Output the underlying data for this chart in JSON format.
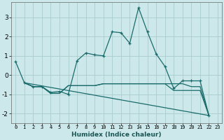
{
  "xlabel": "Humidex (Indice chaleur)",
  "background_color": "#cce8ea",
  "grid_color": "#aacccc",
  "line_color": "#1a6b6b",
  "xlim": [
    -0.5,
    23.5
  ],
  "ylim": [
    -2.5,
    3.8
  ],
  "xticks": [
    0,
    1,
    2,
    3,
    4,
    5,
    6,
    7,
    8,
    9,
    10,
    11,
    12,
    13,
    14,
    15,
    16,
    17,
    18,
    19,
    20,
    21,
    22,
    23
  ],
  "yticks": [
    -2,
    -1,
    0,
    1,
    2,
    3
  ],
  "line_main": {
    "x": [
      0,
      1,
      2,
      3,
      4,
      5,
      6,
      7,
      8,
      9,
      10,
      11,
      12,
      13,
      14,
      15,
      16,
      17,
      18,
      19,
      20,
      21,
      22
    ],
    "y": [
      0.7,
      -0.4,
      -0.6,
      -0.6,
      -0.9,
      -0.85,
      -1.0,
      0.75,
      1.15,
      1.05,
      1.0,
      2.25,
      2.2,
      1.65,
      3.5,
      2.25,
      1.1,
      0.45,
      -0.7,
      -0.3,
      -0.3,
      -0.3,
      -2.1
    ]
  },
  "line_flat1": {
    "x": [
      1,
      2,
      3,
      4,
      5,
      6,
      7,
      8,
      9,
      10,
      11,
      12,
      13,
      14,
      15,
      16,
      17,
      18,
      19,
      20,
      21,
      22
    ],
    "y": [
      -0.4,
      -0.6,
      -0.6,
      -0.95,
      -0.95,
      -0.55,
      -0.55,
      -0.55,
      -0.55,
      -0.45,
      -0.45,
      -0.45,
      -0.45,
      -0.45,
      -0.45,
      -0.45,
      -0.45,
      -0.45,
      -0.45,
      -0.6,
      -0.6,
      -2.1
    ]
  },
  "line_flat2": {
    "x": [
      1,
      2,
      3,
      4,
      5,
      6,
      7,
      8,
      9,
      10,
      11,
      12,
      13,
      14,
      15,
      16,
      17,
      18,
      19,
      20,
      21,
      22
    ],
    "y": [
      -0.4,
      -0.6,
      -0.6,
      -0.95,
      -0.95,
      -0.55,
      -0.55,
      -0.55,
      -0.55,
      -0.45,
      -0.45,
      -0.45,
      -0.45,
      -0.45,
      -0.45,
      -0.45,
      -0.45,
      -0.8,
      -0.8,
      -0.8,
      -0.8,
      -2.1
    ]
  },
  "line_diag": {
    "x": [
      1,
      22
    ],
    "y": [
      -0.4,
      -2.1
    ]
  }
}
